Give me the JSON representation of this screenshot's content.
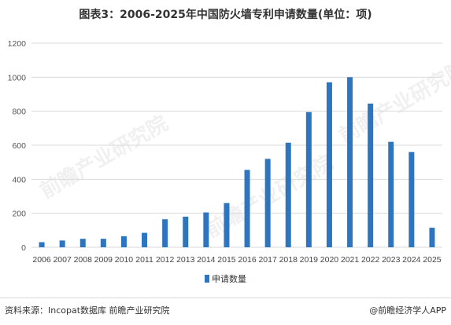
{
  "header": {
    "title": "图表3：2006-2025年中国防火墙专利申请数量(单位：项)"
  },
  "footer": {
    "source": "资料来源：Incopat数据库 前瞻产业研究院",
    "credit": "@前瞻经济学人APP"
  },
  "watermark": {
    "text": "前瞻产业研究院"
  },
  "colors": {
    "bar": "#2e75c0",
    "grid": "#d9d9d9"
  },
  "chart_data": {
    "type": "bar",
    "title": "图表3：2006-2025年中国防火墙专利申请数量(单位：项)",
    "xlabel": "",
    "ylabel": "",
    "categories": [
      "2006",
      "2007",
      "2008",
      "2009",
      "2010",
      "2011",
      "2012",
      "2013",
      "2014",
      "2015",
      "2016",
      "2017",
      "2018",
      "2019",
      "2020",
      "2021",
      "2022",
      "2023",
      "2024",
      "2025"
    ],
    "series": [
      {
        "name": "申请数量",
        "values": [
          30,
          40,
          50,
          50,
          65,
          85,
          165,
          180,
          205,
          260,
          455,
          520,
          615,
          795,
          970,
          1000,
          845,
          620,
          560,
          115
        ]
      }
    ],
    "ylim": [
      0,
      1200
    ],
    "yticks": [
      0,
      200,
      400,
      600,
      800,
      1000,
      1200
    ],
    "grid": true,
    "legend_position": "bottom"
  }
}
